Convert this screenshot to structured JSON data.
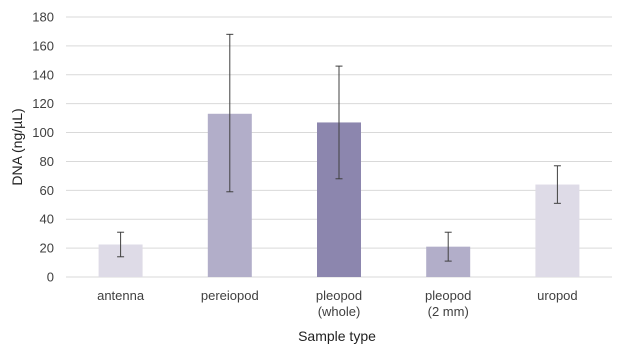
{
  "chart_data": {
    "type": "bar",
    "xlabel": "Sample type",
    "ylabel": "DNA (ng/µL)",
    "ylim": [
      0,
      180
    ],
    "ytick_step": 20,
    "grid": "horizontal",
    "categories": [
      {
        "lines": [
          "antenna"
        ]
      },
      {
        "lines": [
          "pereiopod"
        ]
      },
      {
        "lines": [
          "pleopod",
          "(whole)"
        ]
      },
      {
        "lines": [
          "pleopod",
          "(2 mm)"
        ]
      },
      {
        "lines": [
          "uropod"
        ]
      }
    ],
    "values": [
      22.5,
      113,
      107,
      21,
      64
    ],
    "error_low": [
      14,
      59,
      68,
      11,
      51
    ],
    "error_high": [
      31,
      168,
      146,
      31,
      77
    ],
    "bar_colors": [
      "#dedbe7",
      "#b2aec9",
      "#8c86ae",
      "#b2aec9",
      "#dedbe7"
    ],
    "gridline_color": "#d9d9d9",
    "errorbar_color": "#404040"
  }
}
